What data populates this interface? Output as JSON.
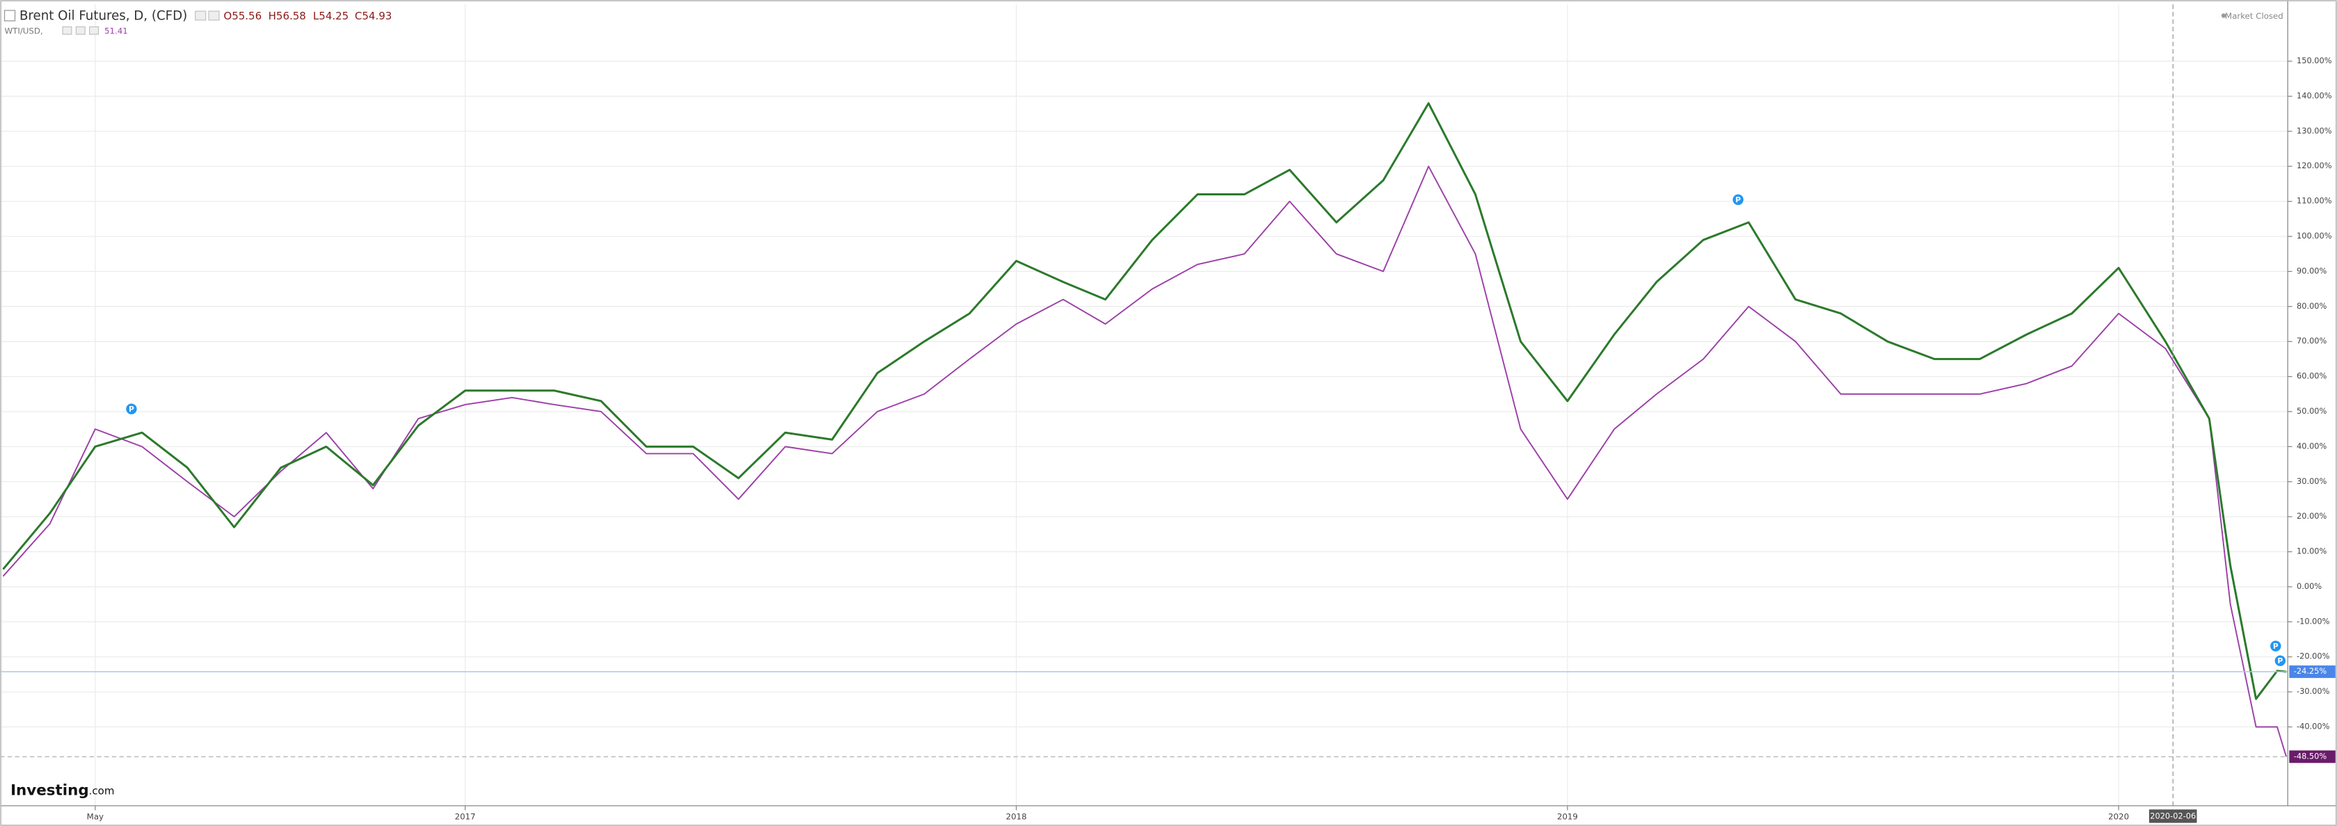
{
  "header": {
    "title": "Brent Oil Futures, D, (CFD)",
    "ohlc": [
      "O55.56",
      "H56.58",
      "L54.25",
      "C54.93"
    ],
    "compare_symbol": "WTI/USD,",
    "compare_value": "51.41",
    "status": "Market Closed",
    "logo": "Investing",
    "logo_suffix": ".com"
  },
  "chart_data": {
    "type": "line",
    "x": [
      "2016-03-01",
      "2016-04-01",
      "2016-05-01",
      "2016-06-01",
      "2016-07-01",
      "2016-08-01",
      "2016-09-01",
      "2016-10-01",
      "2016-11-01",
      "2016-12-01",
      "2017-01-01",
      "2017-02-01",
      "2017-03-01",
      "2017-04-01",
      "2017-05-01",
      "2017-06-01",
      "2017-07-01",
      "2017-08-01",
      "2017-09-01",
      "2017-10-01",
      "2017-11-01",
      "2017-12-01",
      "2018-01-01",
      "2018-02-01",
      "2018-03-01",
      "2018-04-01",
      "2018-05-01",
      "2018-06-01",
      "2018-07-01",
      "2018-08-01",
      "2018-09-01",
      "2018-10-01",
      "2018-11-01",
      "2018-12-01",
      "2019-01-01",
      "2019-02-01",
      "2019-03-01",
      "2019-04-01",
      "2019-05-01",
      "2019-06-01",
      "2019-07-01",
      "2019-08-01",
      "2019-09-01",
      "2019-10-01",
      "2019-11-01",
      "2019-12-01",
      "2020-01-01",
      "2020-02-01",
      "2020-03-01",
      "2020-03-15",
      "2020-04-01",
      "2020-04-15",
      "2020-04-21"
    ],
    "xlim": [
      "2016-02-28",
      "2020-04-22"
    ],
    "xticks": [
      {
        "value": "2016-05-01",
        "label": "May"
      },
      {
        "value": "2017-01-01",
        "label": "2017"
      },
      {
        "value": "2018-01-01",
        "label": "2018"
      },
      {
        "value": "2019-01-01",
        "label": "2019"
      },
      {
        "value": "2020-01-01",
        "label": "2020"
      }
    ],
    "crosshair_x": "2020-02-06",
    "ylim": [
      -62.5,
      166.2
    ],
    "yticks": [
      {
        "value": -40,
        "label": "-40.00%"
      },
      {
        "value": -30,
        "label": "-30.00%"
      },
      {
        "value": -20,
        "label": "-20.00%"
      },
      {
        "value": -10,
        "label": "-10.00%"
      },
      {
        "value": 0,
        "label": "0.00%"
      },
      {
        "value": 10,
        "label": "10.00%"
      },
      {
        "value": 20,
        "label": "20.00%"
      },
      {
        "value": 30,
        "label": "30.00%"
      },
      {
        "value": 40,
        "label": "40.00%"
      },
      {
        "value": 50,
        "label": "50.00%"
      },
      {
        "value": 60,
        "label": "60.00%"
      },
      {
        "value": 70,
        "label": "70.00%"
      },
      {
        "value": 80,
        "label": "80.00%"
      },
      {
        "value": 90,
        "label": "90.00%"
      },
      {
        "value": 100,
        "label": "100.00%"
      },
      {
        "value": 110,
        "label": "110.00%"
      },
      {
        "value": 120,
        "label": "120.00%"
      },
      {
        "value": 130,
        "label": "130.00%"
      },
      {
        "value": 140,
        "label": "140.00%"
      },
      {
        "value": 150,
        "label": "150.00%"
      }
    ],
    "grid": true,
    "series": [
      {
        "color": "#2b7a2b",
        "price_line": {
          "value": -24.25,
          "label": "-24.25%"
        },
        "price_color": "#4a86e8",
        "values": [
          5,
          21,
          40,
          44,
          34,
          17,
          34,
          40,
          29,
          46,
          56,
          56,
          56,
          53,
          40,
          40,
          31,
          44,
          42,
          61,
          70,
          78,
          93,
          87,
          82,
          99,
          112,
          112,
          119,
          104,
          116,
          138,
          112,
          70,
          53,
          72,
          87,
          99,
          104,
          82,
          78,
          70,
          65,
          65,
          72,
          78,
          91,
          70,
          48,
          6,
          -32,
          -24,
          -24.25
        ]
      },
      {
        "color": "#9c3fa8",
        "price_line": {
          "value": -48.5,
          "label": "-48.50%"
        },
        "price_color": "#6a1b6a",
        "values": [
          3,
          18,
          45,
          40,
          30,
          20,
          33,
          44,
          28,
          48,
          52,
          54,
          52,
          50,
          38,
          38,
          25,
          40,
          38,
          50,
          55,
          65,
          75,
          82,
          75,
          85,
          92,
          95,
          110,
          95,
          90,
          120,
          95,
          45,
          25,
          45,
          55,
          65,
          80,
          70,
          55,
          55,
          55,
          55,
          58,
          63,
          78,
          68,
          48,
          -5,
          -40,
          -40,
          -48.5
        ]
      }
    ],
    "events": {
      "label": "P",
      "x": [
        "2016-05-25",
        "2019-04-24",
        "2020-04-14",
        "2020-04-17"
      ]
    }
  }
}
